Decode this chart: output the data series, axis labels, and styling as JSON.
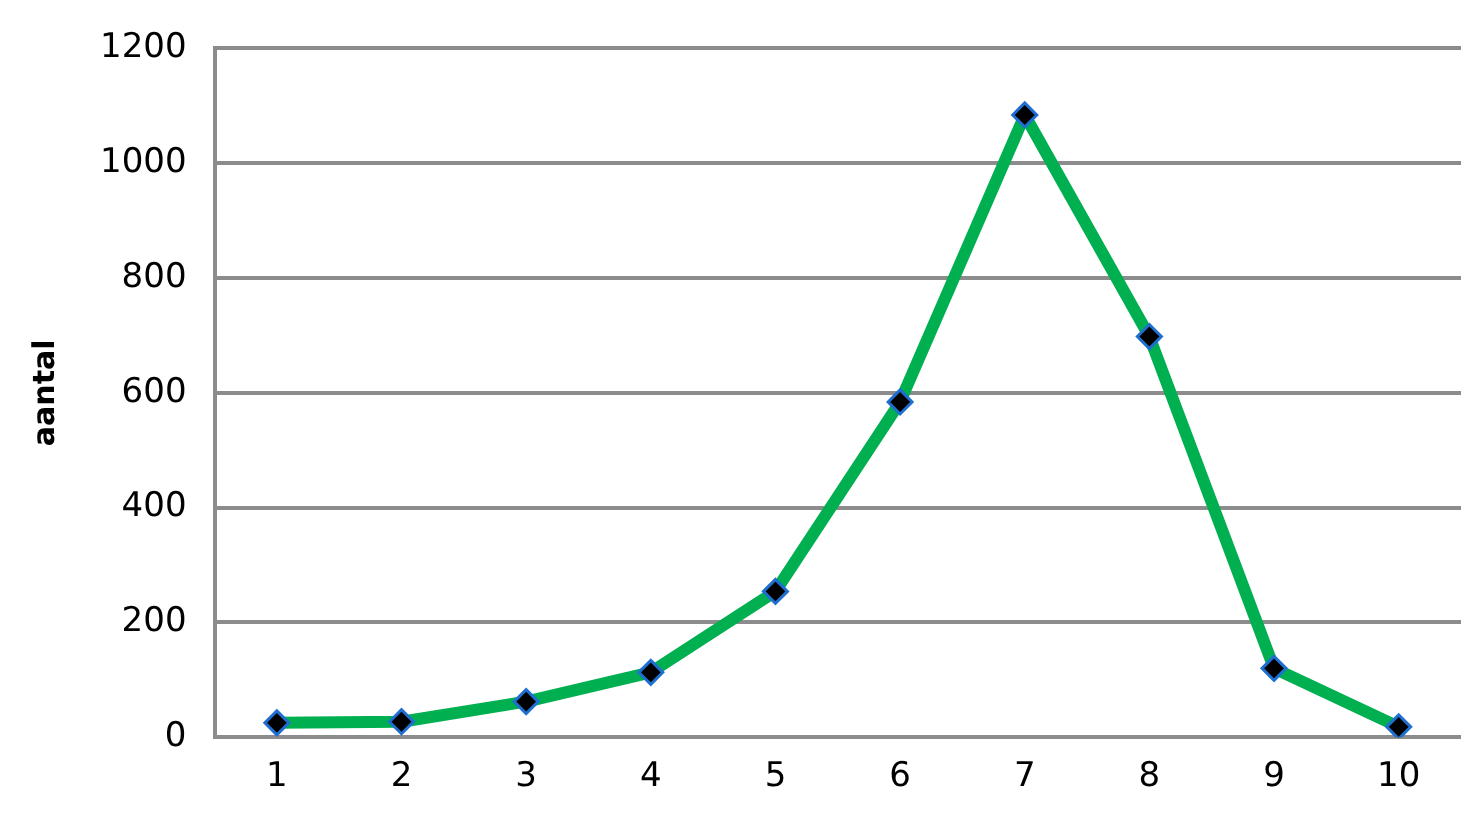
{
  "chart_data": {
    "type": "line",
    "ylabel": "aantal",
    "categories": [
      "1",
      "2",
      "3",
      "4",
      "5",
      "6",
      "7",
      "8",
      "9",
      "10"
    ],
    "series": [
      {
        "color": "#00b050",
        "values": [
          25,
          27,
          62,
          113,
          254,
          584,
          1084,
          698,
          120,
          18
        ]
      }
    ],
    "ylim": [
      0,
      1200
    ],
    "yticks": [
      0,
      200,
      400,
      600,
      800,
      1000,
      1200
    ],
    "grid": "y",
    "legend": false,
    "marker": "diamond",
    "line_style": "solid"
  }
}
